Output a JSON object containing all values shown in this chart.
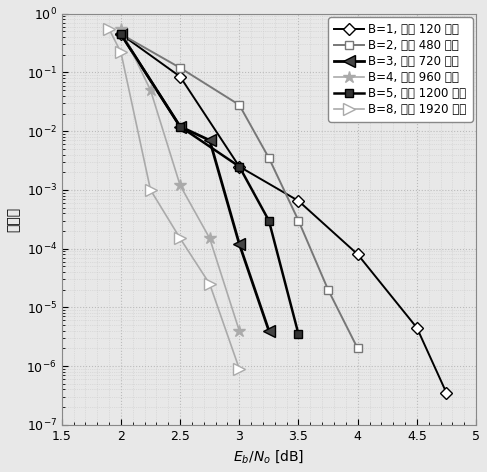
{
  "title": "",
  "xlabel": "$E_b/N_o$ [dB]",
  "ylabel": "误帧率",
  "xlim": [
    1.5,
    5.0
  ],
  "ylim_log": [
    -7,
    0
  ],
  "series": [
    {
      "label": "B=1, 延迟 120 比特",
      "color": "#000000",
      "marker": "D",
      "mfc": "white",
      "linewidth": 1.4,
      "ms": 6,
      "x": [
        2.0,
        2.5,
        3.0,
        3.5,
        4.0,
        4.5,
        4.75
      ],
      "y": [
        0.45,
        0.085,
        0.0025,
        0.00065,
        8e-05,
        4.5e-06,
        3.5e-07
      ]
    },
    {
      "label": "B=2, 延迟 480 比特",
      "color": "#777777",
      "marker": "s",
      "mfc": "white",
      "linewidth": 1.4,
      "ms": 6,
      "x": [
        2.0,
        2.5,
        3.0,
        3.25,
        3.5,
        3.75,
        4.0
      ],
      "y": [
        0.45,
        0.12,
        0.028,
        0.0035,
        0.0003,
        2e-05,
        2e-06
      ]
    },
    {
      "label": "B=3, 延迟 720 比特",
      "color": "#000000",
      "marker": "<",
      "mfc": "#444444",
      "linewidth": 2.0,
      "ms": 8,
      "x": [
        2.0,
        2.5,
        2.75,
        3.0,
        3.25
      ],
      "y": [
        0.45,
        0.012,
        0.007,
        0.00012,
        4e-06
      ]
    },
    {
      "label": "B=4, 延迟 960 比特",
      "color": "#aaaaaa",
      "marker": "*",
      "mfc": "#aaaaaa",
      "linewidth": 1.2,
      "ms": 9,
      "x": [
        2.0,
        2.25,
        2.5,
        2.75,
        3.0
      ],
      "y": [
        0.55,
        0.05,
        0.0012,
        0.00015,
        4e-06
      ]
    },
    {
      "label": "B=5, 延迟 1200 比特",
      "color": "#000000",
      "marker": "s",
      "mfc": "#333333",
      "linewidth": 1.8,
      "ms": 6,
      "x": [
        2.0,
        2.5,
        3.0,
        3.25,
        3.5
      ],
      "y": [
        0.45,
        0.012,
        0.0025,
        0.0003,
        3.5e-06
      ]
    },
    {
      "label": "B=8, 延迟 1920 比特",
      "color": "#aaaaaa",
      "marker": ">",
      "mfc": "white",
      "linewidth": 1.2,
      "ms": 8,
      "x": [
        1.9,
        2.0,
        2.25,
        2.5,
        2.75,
        3.0
      ],
      "y": [
        0.55,
        0.22,
        0.001,
        0.00015,
        2.5e-05,
        9e-07
      ]
    }
  ],
  "xticks": [
    1.5,
    2.0,
    2.5,
    3.0,
    3.5,
    4.0,
    4.5,
    5.0
  ],
  "grid_major_color": "#bbbbbb",
  "grid_minor_color": "#cccccc",
  "bg_color": "#e8e8e8",
  "font_size_label": 10,
  "font_size_tick": 9,
  "font_size_legend": 8.5
}
